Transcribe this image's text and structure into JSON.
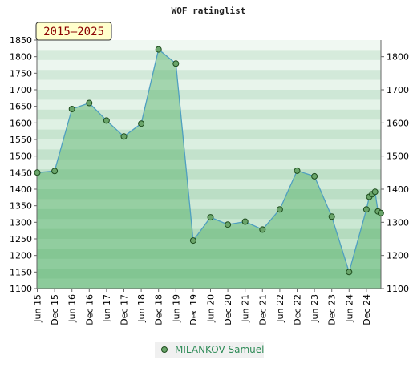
{
  "chart_data": {
    "type": "area",
    "title": "WOF ratinglist",
    "badge": "2015–2025",
    "ylim": [
      1100,
      1850
    ],
    "y_ticks": [
      1100,
      1150,
      1200,
      1250,
      1300,
      1350,
      1400,
      1450,
      1500,
      1550,
      1600,
      1650,
      1700,
      1750,
      1800,
      1850
    ],
    "y2_ticks": [
      1100,
      1200,
      1300,
      1400,
      1500,
      1600,
      1700,
      1800
    ],
    "x_tick_labels": [
      "Jun 15",
      "Dec 15",
      "Jun 16",
      "Dec 16",
      "Jun 17",
      "Dec 17",
      "Jun 18",
      "Dec 18",
      "Jun 19",
      "Dec 19",
      "Jun 20",
      "Dec 20",
      "Jun 21",
      "Dec 21",
      "Jun 22",
      "Dec 22",
      "Jun 23",
      "Dec 23",
      "Jun 24",
      "Dec 24"
    ],
    "series": [
      {
        "name": "MILANKOV Samuel",
        "color": "#6aa56a",
        "points": [
          {
            "x": "2015-06",
            "y": 1450
          },
          {
            "x": "2015-12",
            "y": 1455
          },
          {
            "x": "2016-06",
            "y": 1642
          },
          {
            "x": "2016-12",
            "y": 1660
          },
          {
            "x": "2017-06",
            "y": 1607
          },
          {
            "x": "2017-12",
            "y": 1559
          },
          {
            "x": "2018-06",
            "y": 1598
          },
          {
            "x": "2018-12",
            "y": 1822
          },
          {
            "x": "2019-06",
            "y": 1779
          },
          {
            "x": "2019-12",
            "y": 1245
          },
          {
            "x": "2020-06",
            "y": 1315
          },
          {
            "x": "2020-12",
            "y": 1293
          },
          {
            "x": "2021-06",
            "y": 1302
          },
          {
            "x": "2021-12",
            "y": 1278
          },
          {
            "x": "2022-06",
            "y": 1339
          },
          {
            "x": "2022-12",
            "y": 1456
          },
          {
            "x": "2023-06",
            "y": 1439
          },
          {
            "x": "2023-12",
            "y": 1317
          },
          {
            "x": "2024-06",
            "y": 1150
          },
          {
            "x": "2024-12",
            "y": 1339
          },
          {
            "x": "2025-01",
            "y": 1377
          },
          {
            "x": "2025-02",
            "y": 1385
          },
          {
            "x": "2025-03",
            "y": 1392
          },
          {
            "x": "2025-04",
            "y": 1333
          },
          {
            "x": "2025-05",
            "y": 1328
          }
        ]
      }
    ],
    "grid": true,
    "legend": {
      "placement": "bottom-center"
    }
  }
}
